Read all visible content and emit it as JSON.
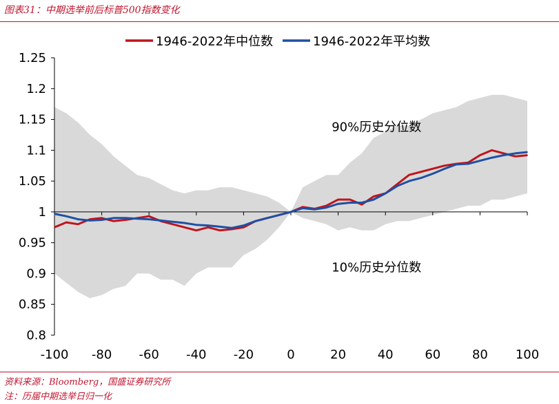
{
  "header": {
    "title": "图表31：中期选举前后标普500指数变化"
  },
  "footer": {
    "source": "资料来源：Bloomberg，国盛证券研究所",
    "note": "注：历届中期选举日归一化"
  },
  "colors": {
    "median": "#c0141c",
    "mean": "#1f4fa3",
    "band": "#d9d9d9",
    "accent": "#c0152f"
  },
  "chart_data": {
    "type": "line",
    "title": "",
    "xlabel": "",
    "ylabel": "",
    "xlim": [
      -100,
      100
    ],
    "ylim": [
      0.8,
      1.25
    ],
    "x_ticks": [
      -100,
      -80,
      -60,
      -40,
      -20,
      0,
      20,
      40,
      60,
      80,
      100
    ],
    "y_ticks": [
      0.8,
      0.85,
      0.9,
      0.95,
      1,
      1.05,
      1.1,
      1.15,
      1.2,
      1.25
    ],
    "legend_position": "top-center",
    "annotations": [
      {
        "text": "90%历史分位数",
        "x": 40,
        "y": 1.138
      },
      {
        "text": "10%历史分位数",
        "x": 40,
        "y": 0.91
      }
    ],
    "band": {
      "x": [
        -100,
        -95,
        -90,
        -85,
        -80,
        -75,
        -70,
        -65,
        -60,
        -55,
        -50,
        -45,
        -40,
        -35,
        -30,
        -25,
        -20,
        -15,
        -10,
        -5,
        0,
        5,
        10,
        15,
        20,
        25,
        30,
        35,
        40,
        45,
        50,
        55,
        60,
        65,
        70,
        75,
        80,
        85,
        90,
        95,
        100
      ],
      "upper": [
        1.17,
        1.16,
        1.145,
        1.125,
        1.11,
        1.09,
        1.075,
        1.06,
        1.055,
        1.045,
        1.035,
        1.03,
        1.035,
        1.035,
        1.04,
        1.04,
        1.035,
        1.03,
        1.025,
        1.015,
        1.0,
        1.04,
        1.05,
        1.06,
        1.06,
        1.08,
        1.095,
        1.12,
        1.13,
        1.14,
        1.14,
        1.15,
        1.16,
        1.165,
        1.17,
        1.18,
        1.185,
        1.19,
        1.19,
        1.185,
        1.18
      ],
      "lower": [
        0.9,
        0.885,
        0.87,
        0.86,
        0.865,
        0.875,
        0.88,
        0.9,
        0.9,
        0.89,
        0.89,
        0.88,
        0.9,
        0.91,
        0.91,
        0.91,
        0.93,
        0.94,
        0.955,
        0.975,
        1.0,
        0.99,
        0.985,
        0.98,
        0.97,
        0.975,
        0.97,
        0.97,
        0.98,
        0.985,
        0.985,
        0.99,
        0.995,
        1.0,
        1.005,
        1.01,
        1.01,
        1.02,
        1.02,
        1.025,
        1.03
      ]
    },
    "series": [
      {
        "name": "1946-2022年中位数",
        "x": [
          -100,
          -95,
          -90,
          -85,
          -80,
          -75,
          -70,
          -65,
          -60,
          -55,
          -50,
          -45,
          -40,
          -35,
          -30,
          -25,
          -20,
          -15,
          -10,
          -5,
          0,
          5,
          10,
          15,
          20,
          25,
          30,
          35,
          40,
          45,
          50,
          55,
          60,
          65,
          70,
          75,
          80,
          85,
          90,
          95,
          100
        ],
        "values": [
          0.975,
          0.983,
          0.98,
          0.988,
          0.99,
          0.985,
          0.987,
          0.99,
          0.993,
          0.985,
          0.98,
          0.975,
          0.97,
          0.975,
          0.97,
          0.972,
          0.975,
          0.985,
          0.99,
          0.995,
          1.0,
          1.008,
          1.005,
          1.01,
          1.02,
          1.02,
          1.012,
          1.025,
          1.03,
          1.045,
          1.06,
          1.065,
          1.07,
          1.075,
          1.078,
          1.08,
          1.092,
          1.1,
          1.095,
          1.09,
          1.092
        ]
      },
      {
        "name": "1946-2022年平均数",
        "x": [
          -100,
          -95,
          -90,
          -85,
          -80,
          -75,
          -70,
          -65,
          -60,
          -55,
          -50,
          -45,
          -40,
          -35,
          -30,
          -25,
          -20,
          -15,
          -10,
          -5,
          0,
          5,
          10,
          15,
          20,
          25,
          30,
          35,
          40,
          45,
          50,
          55,
          60,
          65,
          70,
          75,
          80,
          85,
          90,
          95,
          100
        ],
        "values": [
          0.997,
          0.993,
          0.988,
          0.986,
          0.987,
          0.99,
          0.99,
          0.989,
          0.988,
          0.986,
          0.984,
          0.982,
          0.979,
          0.978,
          0.976,
          0.974,
          0.978,
          0.985,
          0.99,
          0.995,
          1.0,
          1.006,
          1.004,
          1.007,
          1.013,
          1.015,
          1.015,
          1.02,
          1.03,
          1.042,
          1.05,
          1.055,
          1.062,
          1.07,
          1.077,
          1.078,
          1.083,
          1.088,
          1.092,
          1.095,
          1.097
        ]
      }
    ]
  }
}
